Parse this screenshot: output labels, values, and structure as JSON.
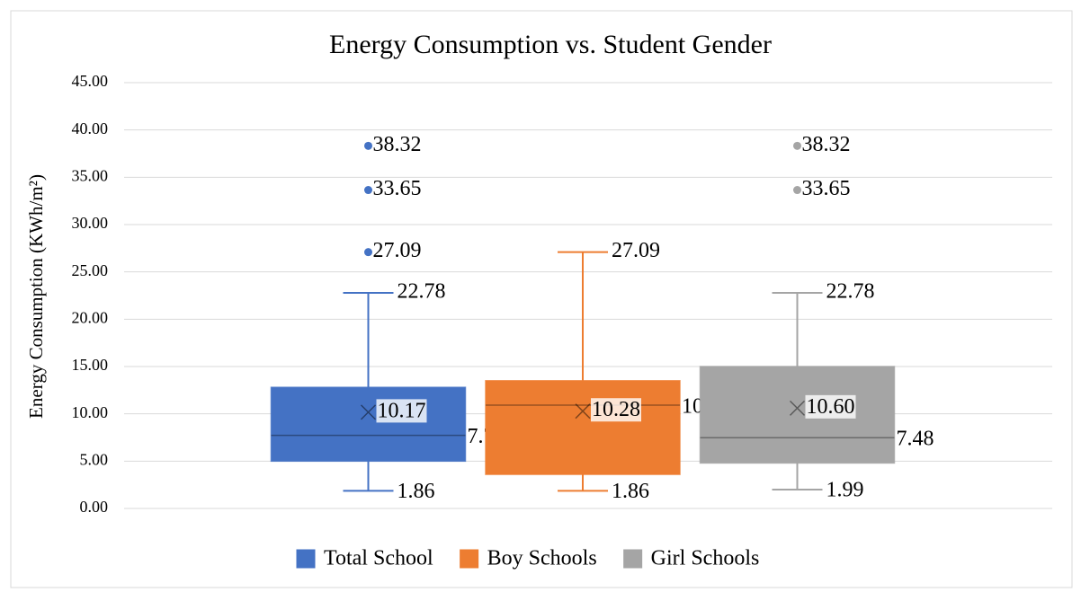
{
  "chart_data": {
    "type": "box",
    "title": "Energy Consumption vs. Student Gender",
    "ylabel": "Energy Consumption (KWh/m²)",
    "ylim": [
      0,
      45
    ],
    "yticks": [
      {
        "value": 0,
        "label": "0.00"
      },
      {
        "value": 5,
        "label": "5.00"
      },
      {
        "value": 10,
        "label": "10.00"
      },
      {
        "value": 15,
        "label": "15.00"
      },
      {
        "value": 20,
        "label": "20.00"
      },
      {
        "value": 25,
        "label": "25.00"
      },
      {
        "value": 30,
        "label": "30.00"
      },
      {
        "value": 35,
        "label": "35.00"
      },
      {
        "value": 40,
        "label": "40.00"
      },
      {
        "value": 45,
        "label": "45.00"
      }
    ],
    "grid": true,
    "legend": "bottom",
    "series": [
      {
        "name": "Total School",
        "color": "#4472c4",
        "min": 1.86,
        "q1": 5.0,
        "median": 7.72,
        "q3": 12.8,
        "max": 22.78,
        "mean": 10.17,
        "outliers": [
          27.09,
          33.65,
          38.32
        ]
      },
      {
        "name": "Boy Schools",
        "color": "#ed7d31",
        "min": 1.86,
        "q1": 3.6,
        "median": 10.92,
        "q3": 13.5,
        "max": 27.09,
        "mean": 10.28,
        "outliers": []
      },
      {
        "name": "Girl Schools",
        "color": "#a5a5a5",
        "min": 1.99,
        "q1": 4.8,
        "median": 7.48,
        "q3": 15.0,
        "max": 22.78,
        "mean": 10.6,
        "mean_label": "10.60",
        "outliers": [
          33.65,
          38.32
        ]
      }
    ]
  }
}
